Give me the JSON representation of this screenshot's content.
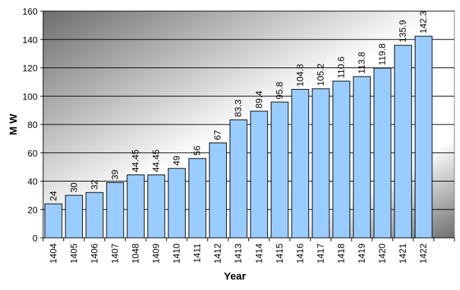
{
  "chart_data": {
    "type": "bar",
    "title": "",
    "xlabel": "Year",
    "ylabel": "M W",
    "categories": [
      "1404",
      "1405",
      "1406",
      "1407",
      "1048",
      "1409",
      "1410",
      "1411",
      "1412",
      "1413",
      "1414",
      "1415",
      "1416",
      "1417",
      "1418",
      "1419",
      "1420",
      "1421",
      "1422"
    ],
    "values": [
      24,
      30,
      32,
      39,
      44.45,
      44.45,
      49,
      56,
      67,
      83.3,
      89.4,
      95.8,
      104.8,
      105.2,
      110.6,
      113.8,
      119.8,
      135.9,
      142.3
    ],
    "data_labels": [
      "24",
      "30",
      "32",
      "39",
      "44.45",
      "44.45",
      "49",
      "56",
      "67",
      "83.3",
      "89.4",
      "95.8",
      "104.8",
      "105.2",
      "110.6",
      "113.8",
      "119.8",
      "135.9",
      "142.3"
    ],
    "ylim": [
      0,
      160
    ],
    "yticks": [
      0,
      20,
      40,
      60,
      80,
      100,
      120,
      140,
      160
    ],
    "grid": true,
    "legend": "none",
    "colors": {
      "bar_fill": "#99ccff",
      "bar_stroke": "#000000",
      "gridline": "#000000",
      "plot_bg_dark": "#6e6e6e",
      "plot_bg_light": "#ffffff"
    }
  }
}
